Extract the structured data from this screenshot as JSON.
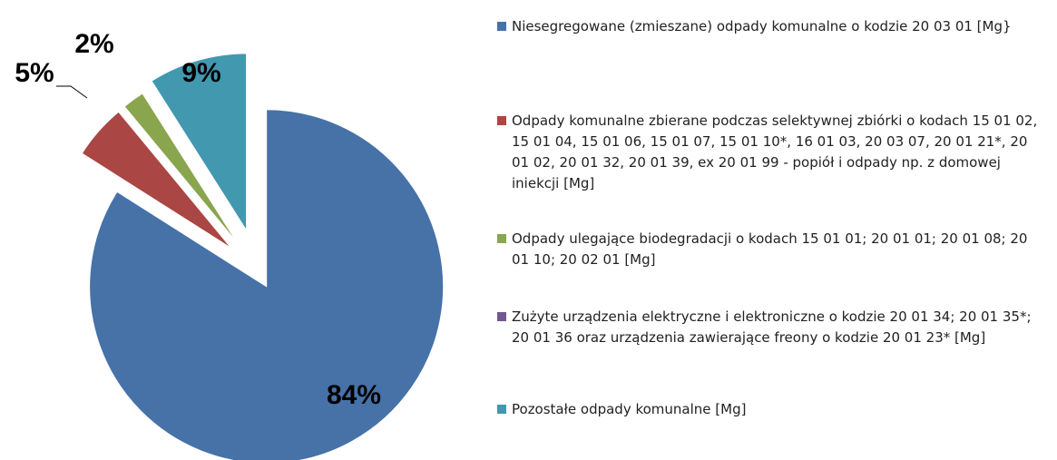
{
  "chart_data": {
    "type": "pie",
    "categories": [
      "Niesegregowane (zmieszane) odpady komunalne o kodzie 20 03 01 [Mg}",
      "Odpady komunalne zbierane podczas selektywnej zbiórki o kodach 15 01 02, 15 01 04, 15 01 06,  15 01 07,  15 01 10*, 16 01 03, 20 03 07, 20 01 21*, 20 01 02,  20 01 32, 20 01 39, ex 20 01 99 - popiół i odpady np. z domowej iniekcji [Mg]",
      "Odpady ulegające biodegradacji o kodach 15 01 01; 20 01 01; 20 01 08; 20 01 10; 20 02 01 [Mg]",
      "Zużyte urządzenia elektryczne i elektroniczne o kodzie 20 01 34; 20 01 35*; 20 01 36 oraz urządzenia zawierające freony o kodzie 20 01 23* [Mg]",
      "Pozostałe odpady komunalne [Mg]"
    ],
    "values": [
      84,
      5,
      2,
      0,
      9
    ],
    "value_labels": [
      "84%",
      "5%",
      "2%",
      null,
      "9%"
    ],
    "colors": [
      "#4672a8",
      "#aa4643",
      "#89a54e",
      "#71588f",
      "#4198af"
    ],
    "legend": "right"
  }
}
